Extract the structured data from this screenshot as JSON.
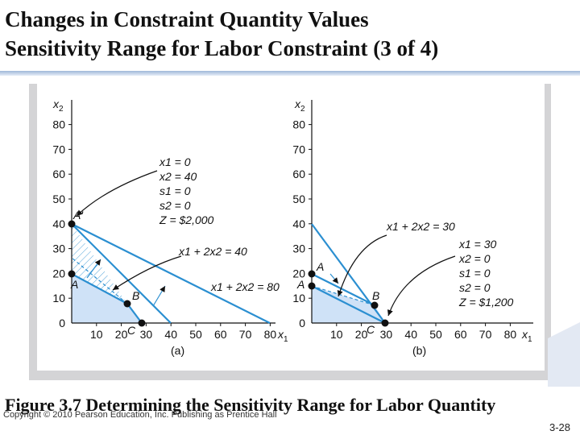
{
  "slide": {
    "title_line1": "Changes in Constraint Quantity Values",
    "title_line2": "Sensitivity Range for Labor Constraint (3 of 4)",
    "caption": "Figure 3.7 Determining the Sensitivity Range for Labor Quantity",
    "copyright": "Copyright © 2010 Pearson Education, Inc. Publishing as Prentice Hall",
    "slide_number": "3-28"
  },
  "colors": {
    "line_blue": "#2b8fd1",
    "feasible_fill": "#cfe2f7",
    "point": "#111111"
  },
  "figure": {
    "x_ticks": [
      "10",
      "20",
      "30",
      "40",
      "50",
      "60",
      "70",
      "80"
    ],
    "y_ticks": [
      "0",
      "10",
      "20",
      "30",
      "40",
      "50",
      "60",
      "70",
      "80"
    ],
    "panel_a": {
      "label": "(a)",
      "y_axis_label": "x2",
      "x_axis_label": "x1",
      "point_labels": [
        "A'",
        "A",
        "B",
        "C"
      ],
      "line_labels": [
        "x1 + 2x2 = 40",
        "x1 + 2x2 = 80"
      ],
      "solution": [
        "x1 = 0",
        "x2 = 40",
        "s1 = 0",
        "s2 = 0",
        "Z = $2,000"
      ]
    },
    "panel_b": {
      "label": "(b)",
      "y_axis_label": "x2",
      "x_axis_label": "x1",
      "point_labels": [
        "A",
        "A",
        "B",
        "C"
      ],
      "line_labels": [
        "x1 + 2x2 = 30"
      ],
      "solution": [
        "x1 = 30",
        "x2 = 0",
        "s1 = 0",
        "s2 = 0",
        "Z = $1,200"
      ]
    }
  }
}
